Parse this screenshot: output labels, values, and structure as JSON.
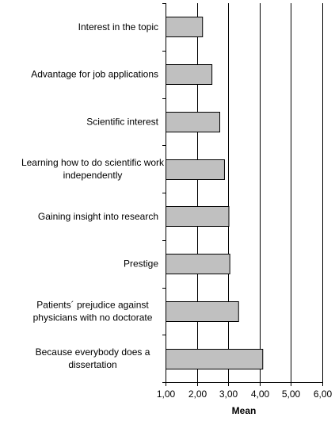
{
  "chart_data": {
    "type": "bar",
    "orientation": "horizontal",
    "categories": [
      [
        "Interest in the topic"
      ],
      [
        "Advantage for job applications"
      ],
      [
        "Scientific interest"
      ],
      [
        "Learning how to do scientific work",
        "independently"
      ],
      [
        "Gaining insight into research"
      ],
      [
        "Prestige"
      ],
      [
        "Patients´ prejudice against",
        "physicians with no doctorate"
      ],
      [
        "Because everybody does a",
        "dissertation"
      ]
    ],
    "values": [
      2.18,
      2.48,
      2.73,
      2.88,
      3.02,
      3.05,
      3.33,
      4.1
    ],
    "xlabel": "Mean",
    "xlim": [
      1,
      6
    ],
    "xticks": [
      1,
      2,
      3,
      4,
      5,
      6
    ],
    "xtick_labels": [
      "1,00",
      "2,00",
      "3,00",
      "4,00",
      "5,00",
      "6,00"
    ],
    "grid": "vertical",
    "legend": "none",
    "colors": {
      "bar_fill": "#c0c0c0",
      "bar_stroke": "#000000",
      "grid": "#000000",
      "axis": "#000000",
      "text": "#000000"
    }
  }
}
